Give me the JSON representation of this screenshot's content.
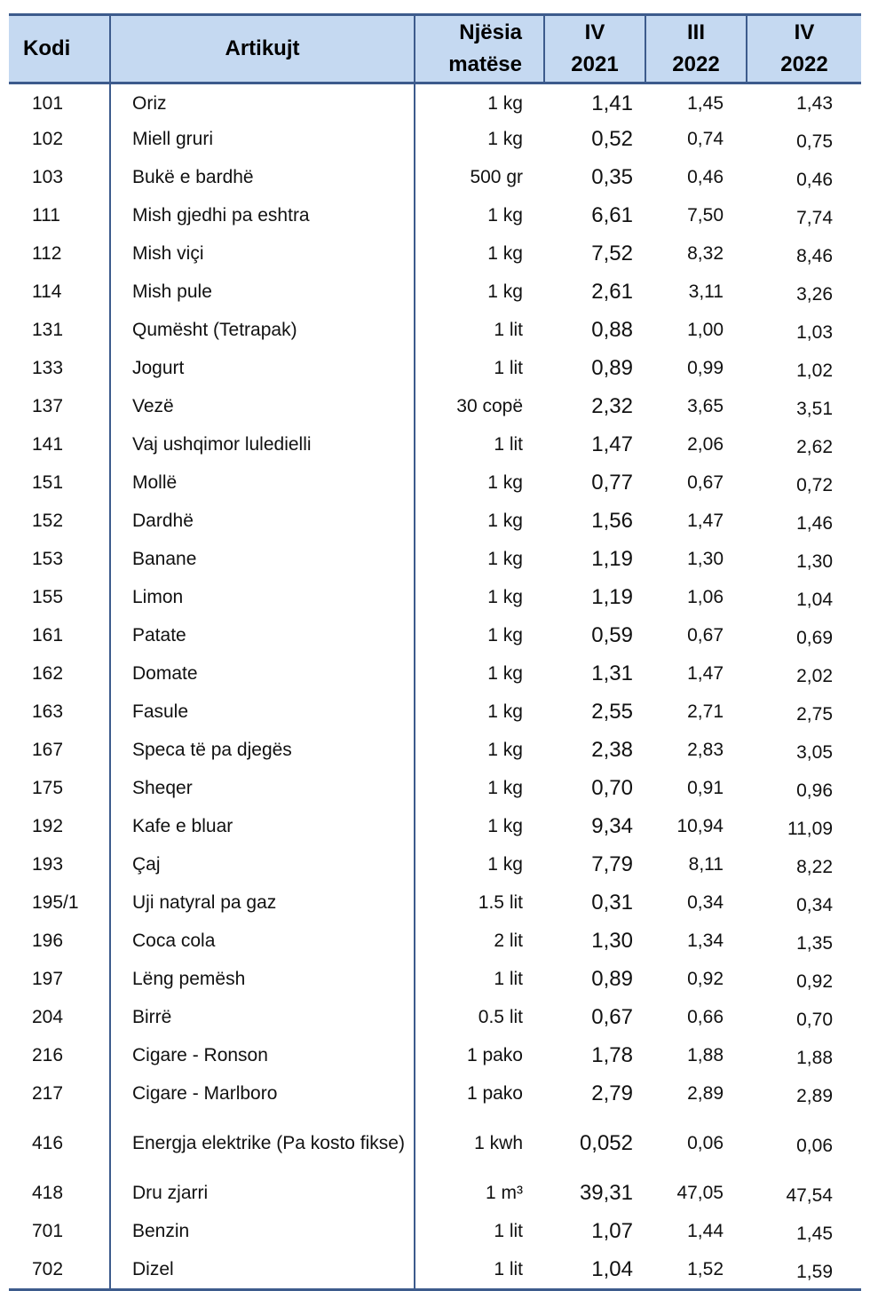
{
  "headers": {
    "code": "Kodi",
    "item": "Artikujt",
    "unit_line1": "Njësia",
    "unit_line2": "matëse",
    "p1_line1": "IV",
    "p1_line2": "2021",
    "p2_line1": "III",
    "p2_line2": "2022",
    "p3_line1": "IV",
    "p3_line2": "2022"
  },
  "rows": [
    {
      "code": "101",
      "item": "Oriz",
      "unit": "1 kg",
      "v1": "1,41",
      "v2": "1,45",
      "v3": "1,43"
    },
    {
      "code": "102",
      "item": "Miell gruri",
      "unit": "1 kg",
      "v1": "0,52",
      "v2": "0,74",
      "v3": "0,75"
    },
    {
      "code": "103",
      "item": "Bukë e bardhë",
      "unit": "500 gr",
      "v1": "0,35",
      "v2": "0,46",
      "v3": "0,46"
    },
    {
      "code": "111",
      "item": "Mish gjedhi pa eshtra",
      "unit": "1 kg",
      "v1": "6,61",
      "v2": "7,50",
      "v3": "7,74"
    },
    {
      "code": "112",
      "item": "Mish viçi",
      "unit": "1 kg",
      "v1": "7,52",
      "v2": "8,32",
      "v3": "8,46"
    },
    {
      "code": "114",
      "item": "Mish pule",
      "unit": "1 kg",
      "v1": "2,61",
      "v2": "3,11",
      "v3": "3,26"
    },
    {
      "code": "131",
      "item": "Qumësht  (Tetrapak)",
      "unit": "1 lit",
      "v1": "0,88",
      "v2": "1,00",
      "v3": "1,03"
    },
    {
      "code": "133",
      "item": "Jogurt",
      "unit": "1 lit",
      "v1": "0,89",
      "v2": "0,99",
      "v3": "1,02"
    },
    {
      "code": "137",
      "item": "Vezë",
      "unit": "30 copë",
      "v1": "2,32",
      "v2": "3,65",
      "v3": "3,51"
    },
    {
      "code": "141",
      "item": "Vaj ushqimor luledielli",
      "unit": "1 lit",
      "v1": "1,47",
      "v2": "2,06",
      "v3": "2,62"
    },
    {
      "code": "151",
      "item": "Mollë",
      "unit": "1 kg",
      "v1": "0,77",
      "v2": "0,67",
      "v3": "0,72"
    },
    {
      "code": "152",
      "item": "Dardhë",
      "unit": "1 kg",
      "v1": "1,56",
      "v2": "1,47",
      "v3": "1,46"
    },
    {
      "code": "153",
      "item": "Banane",
      "unit": "1 kg",
      "v1": "1,19",
      "v2": "1,30",
      "v3": "1,30"
    },
    {
      "code": "155",
      "item": "Limon",
      "unit": "1 kg",
      "v1": "1,19",
      "v2": "1,06",
      "v3": "1,04"
    },
    {
      "code": "161",
      "item": "Patate",
      "unit": "1 kg",
      "v1": "0,59",
      "v2": "0,67",
      "v3": "0,69"
    },
    {
      "code": "162",
      "item": "Domate",
      "unit": "1 kg",
      "v1": "1,31",
      "v2": "1,47",
      "v3": "2,02"
    },
    {
      "code": "163",
      "item": "Fasule",
      "unit": "1 kg",
      "v1": "2,55",
      "v2": "2,71",
      "v3": "2,75"
    },
    {
      "code": "167",
      "item": "Speca  të pa djegës",
      "unit": "1 kg",
      "v1": "2,38",
      "v2": "2,83",
      "v3": "3,05"
    },
    {
      "code": "175",
      "item": "Sheqer",
      "unit": "1 kg",
      "v1": "0,70",
      "v2": "0,91",
      "v3": "0,96"
    },
    {
      "code": "192",
      "item": "Kafe e bluar",
      "unit": "1 kg",
      "v1": "9,34",
      "v2": "10,94",
      "v3": "11,09"
    },
    {
      "code": "193",
      "item": "Çaj",
      "unit": "1 kg",
      "v1": "7,79",
      "v2": "8,11",
      "v3": "8,22"
    },
    {
      "code": "195/1",
      "item": "Uji natyral pa gaz",
      "unit": "1.5 lit",
      "v1": "0,31",
      "v2": "0,34",
      "v3": "0,34"
    },
    {
      "code": "196",
      "item": "Coca cola",
      "unit": "2 lit",
      "v1": "1,30",
      "v2": "1,34",
      "v3": "1,35"
    },
    {
      "code": "197",
      "item": "Lëng pemësh",
      "unit": "1 lit",
      "v1": "0,89",
      "v2": "0,92",
      "v3": "0,92"
    },
    {
      "code": "204",
      "item": "Birrë",
      "unit": "0.5 lit",
      "v1": "0,67",
      "v2": "0,66",
      "v3": "0,70"
    },
    {
      "code": "216",
      "item": "Cigare - Ronson",
      "unit": "1 pako",
      "v1": "1,78",
      "v2": "1,88",
      "v3": "1,88"
    },
    {
      "code": "217",
      "item": "Cigare - Marlboro",
      "unit": "1 pako",
      "v1": "2,79",
      "v2": "2,89",
      "v3": "2,89"
    },
    {
      "code": "416",
      "item": "Energja elektrike (Pa kosto fikse)",
      "unit": "1 kwh",
      "v1": "0,052",
      "v2": "0,06",
      "v3": "0,06"
    },
    {
      "code": "418",
      "item": "Dru zjarri",
      "unit": "1 m³",
      "v1": "39,31",
      "v2": "47,05",
      "v3": "47,54"
    },
    {
      "code": "701",
      "item": "Benzin",
      "unit": "1 lit",
      "v1": "1,07",
      "v2": "1,44",
      "v3": "1,45"
    },
    {
      "code": "702",
      "item": "Dizel",
      "unit": "1 lit",
      "v1": "1,04",
      "v2": "1,52",
      "v3": "1,59"
    }
  ]
}
